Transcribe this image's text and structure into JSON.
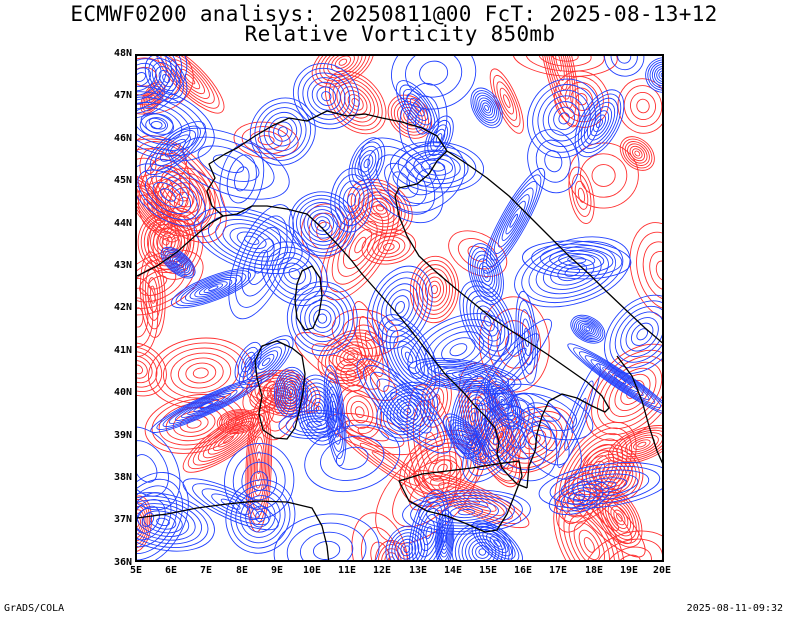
{
  "title_line1": "ECMWF0200 analisys: 20250811@00 FcT: 2025-08-13+12",
  "title_line2": "Relative Vorticity 850mb",
  "axes": {
    "lon_labels": [
      "5E",
      "6E",
      "7E",
      "8E",
      "9E",
      "10E",
      "11E",
      "12E",
      "13E",
      "14E",
      "15E",
      "16E",
      "17E",
      "18E",
      "19E",
      "20E"
    ],
    "lat_labels": [
      "48N",
      "47N",
      "46N",
      "45N",
      "44N",
      "43N",
      "42N",
      "41N",
      "40N",
      "39N",
      "38N",
      "37N",
      "36N"
    ],
    "lon_range": [
      5,
      20
    ],
    "lat_range": [
      36,
      48
    ]
  },
  "colors": {
    "positive_contour": "#ff3030",
    "negative_contour": "#2040ff",
    "coastline": "#000000"
  },
  "footer": {
    "left": "GrADS/COLA",
    "right": "2025-08-11-09:32"
  }
}
